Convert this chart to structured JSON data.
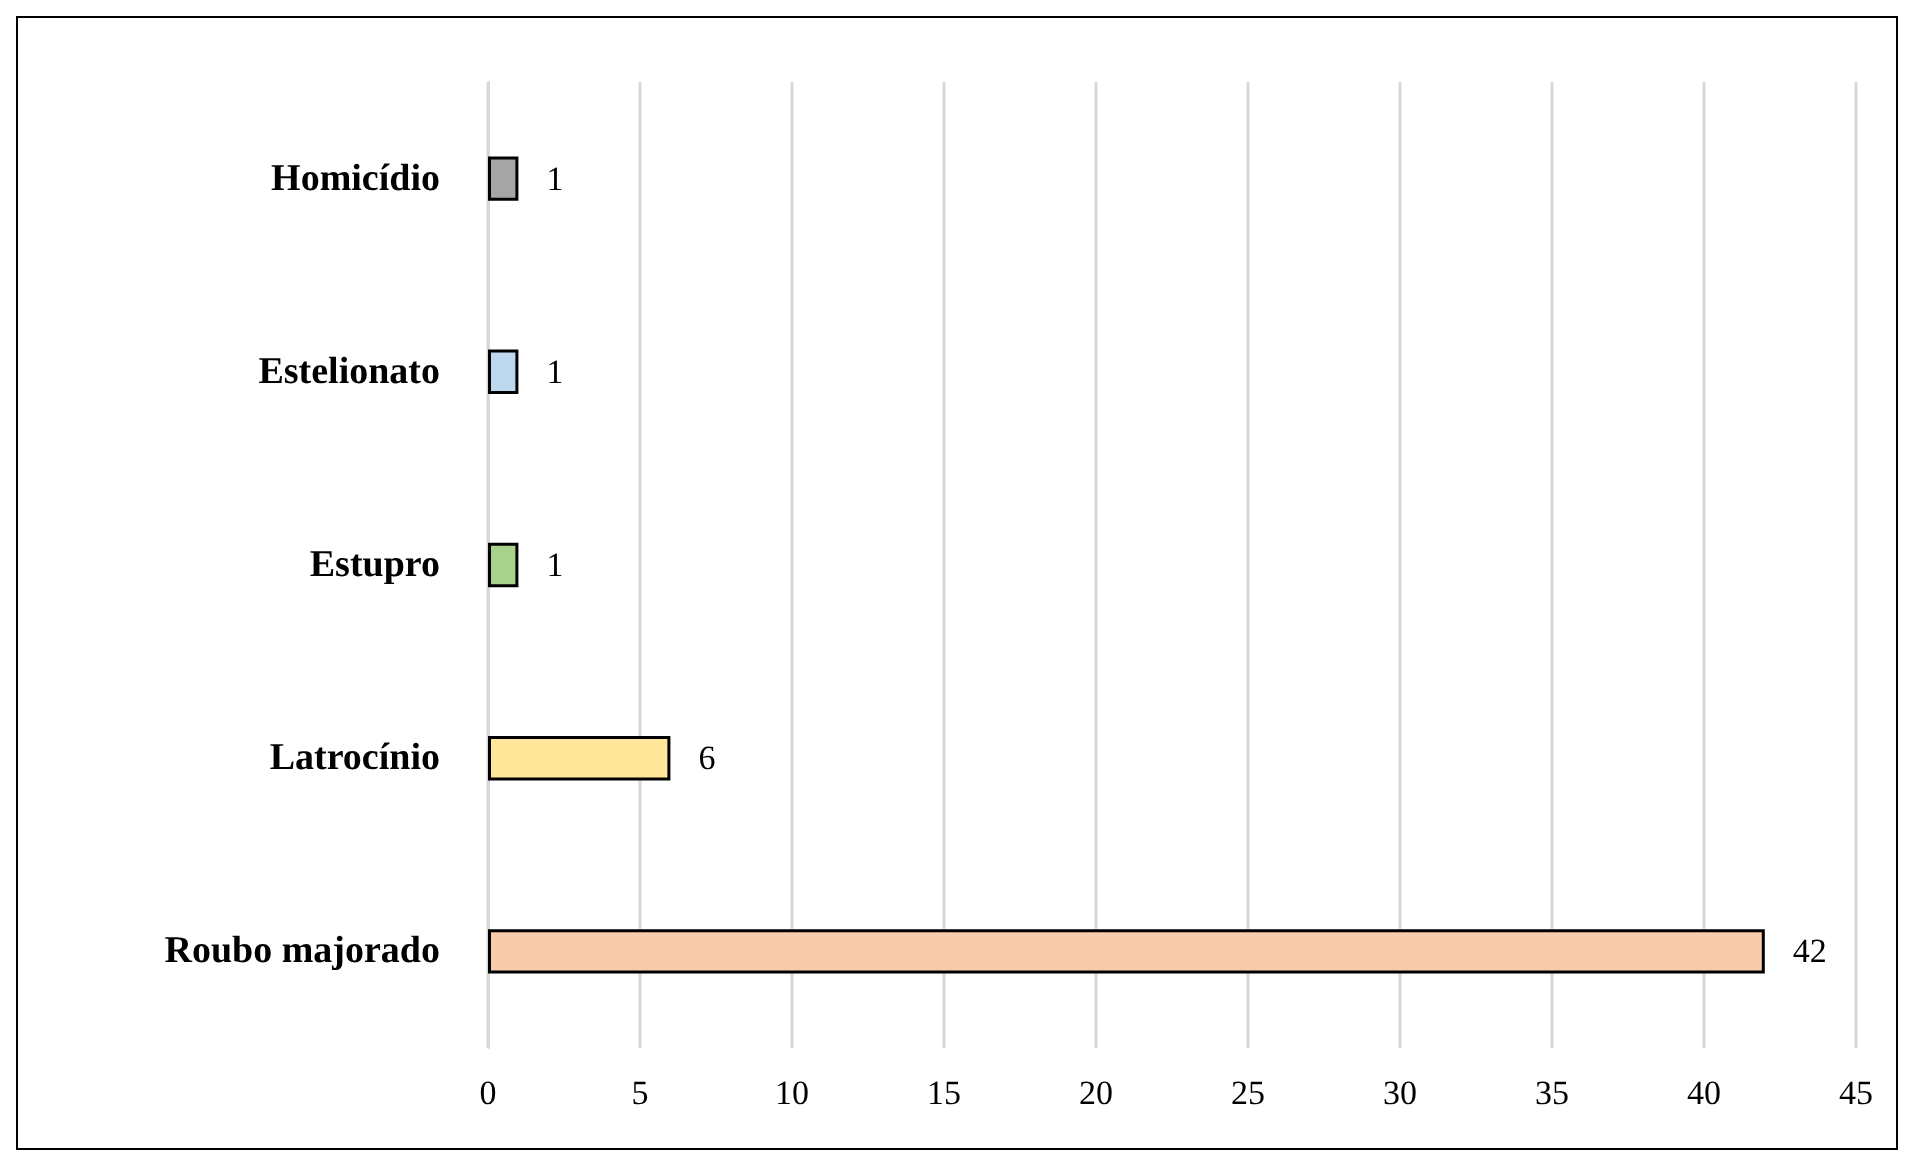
{
  "chart_data": {
    "type": "bar",
    "orientation": "horizontal",
    "categories": [
      "Homicídio",
      "Estelionato",
      "Estupro",
      "Latrocínio",
      "Roubo majorado"
    ],
    "values": [
      1,
      1,
      1,
      6,
      42
    ],
    "colors": [
      "#a5a5a5",
      "#bdd7ee",
      "#a9d18e",
      "#ffe699",
      "#f8cbad"
    ],
    "xlim": [
      0,
      45
    ],
    "xticks": [
      0,
      5,
      10,
      15,
      20,
      25,
      30,
      35,
      40,
      45
    ],
    "grid": "x",
    "data_labels": true
  }
}
